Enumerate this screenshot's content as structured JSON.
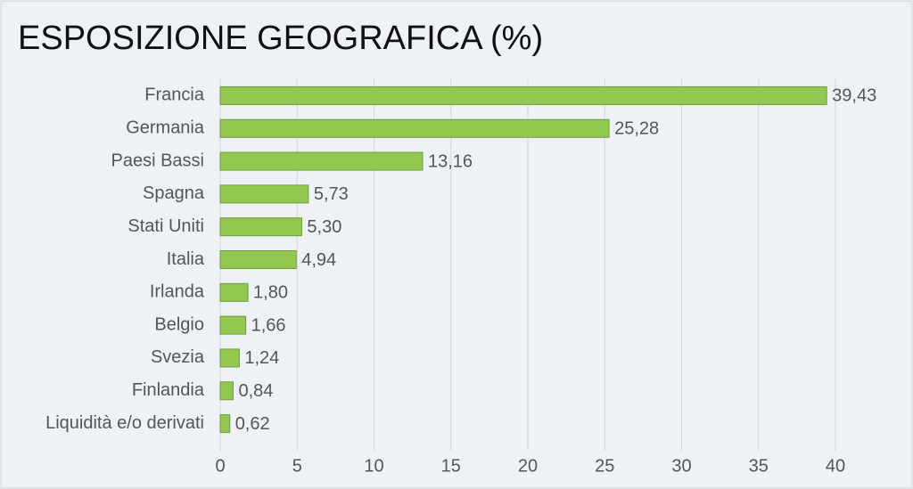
{
  "chart_data": {
    "type": "hbar",
    "title": "ESPOSIZIONE GEOGRAFICA (%)",
    "categories": [
      "Francia",
      "Germania",
      "Paesi Bassi",
      "Spagna",
      "Stati Uniti",
      "Italia",
      "Irlanda",
      "Belgio",
      "Svezia",
      "Finlandia",
      "Liquidità e/o derivati"
    ],
    "values": [
      39.43,
      25.28,
      13.16,
      5.73,
      5.3,
      4.94,
      1.8,
      1.66,
      1.24,
      0.84,
      0.62
    ],
    "value_labels": [
      "39,43",
      "25,28",
      "13,16",
      "5,73",
      "5,30",
      "4,94",
      "1,80",
      "1,66",
      "1,24",
      "0,84",
      "0,62"
    ],
    "color": "#92c850",
    "xlim": [
      0,
      40
    ],
    "xticks": [
      0,
      5,
      10,
      15,
      20,
      25,
      30,
      35,
      40
    ],
    "grid": true
  }
}
